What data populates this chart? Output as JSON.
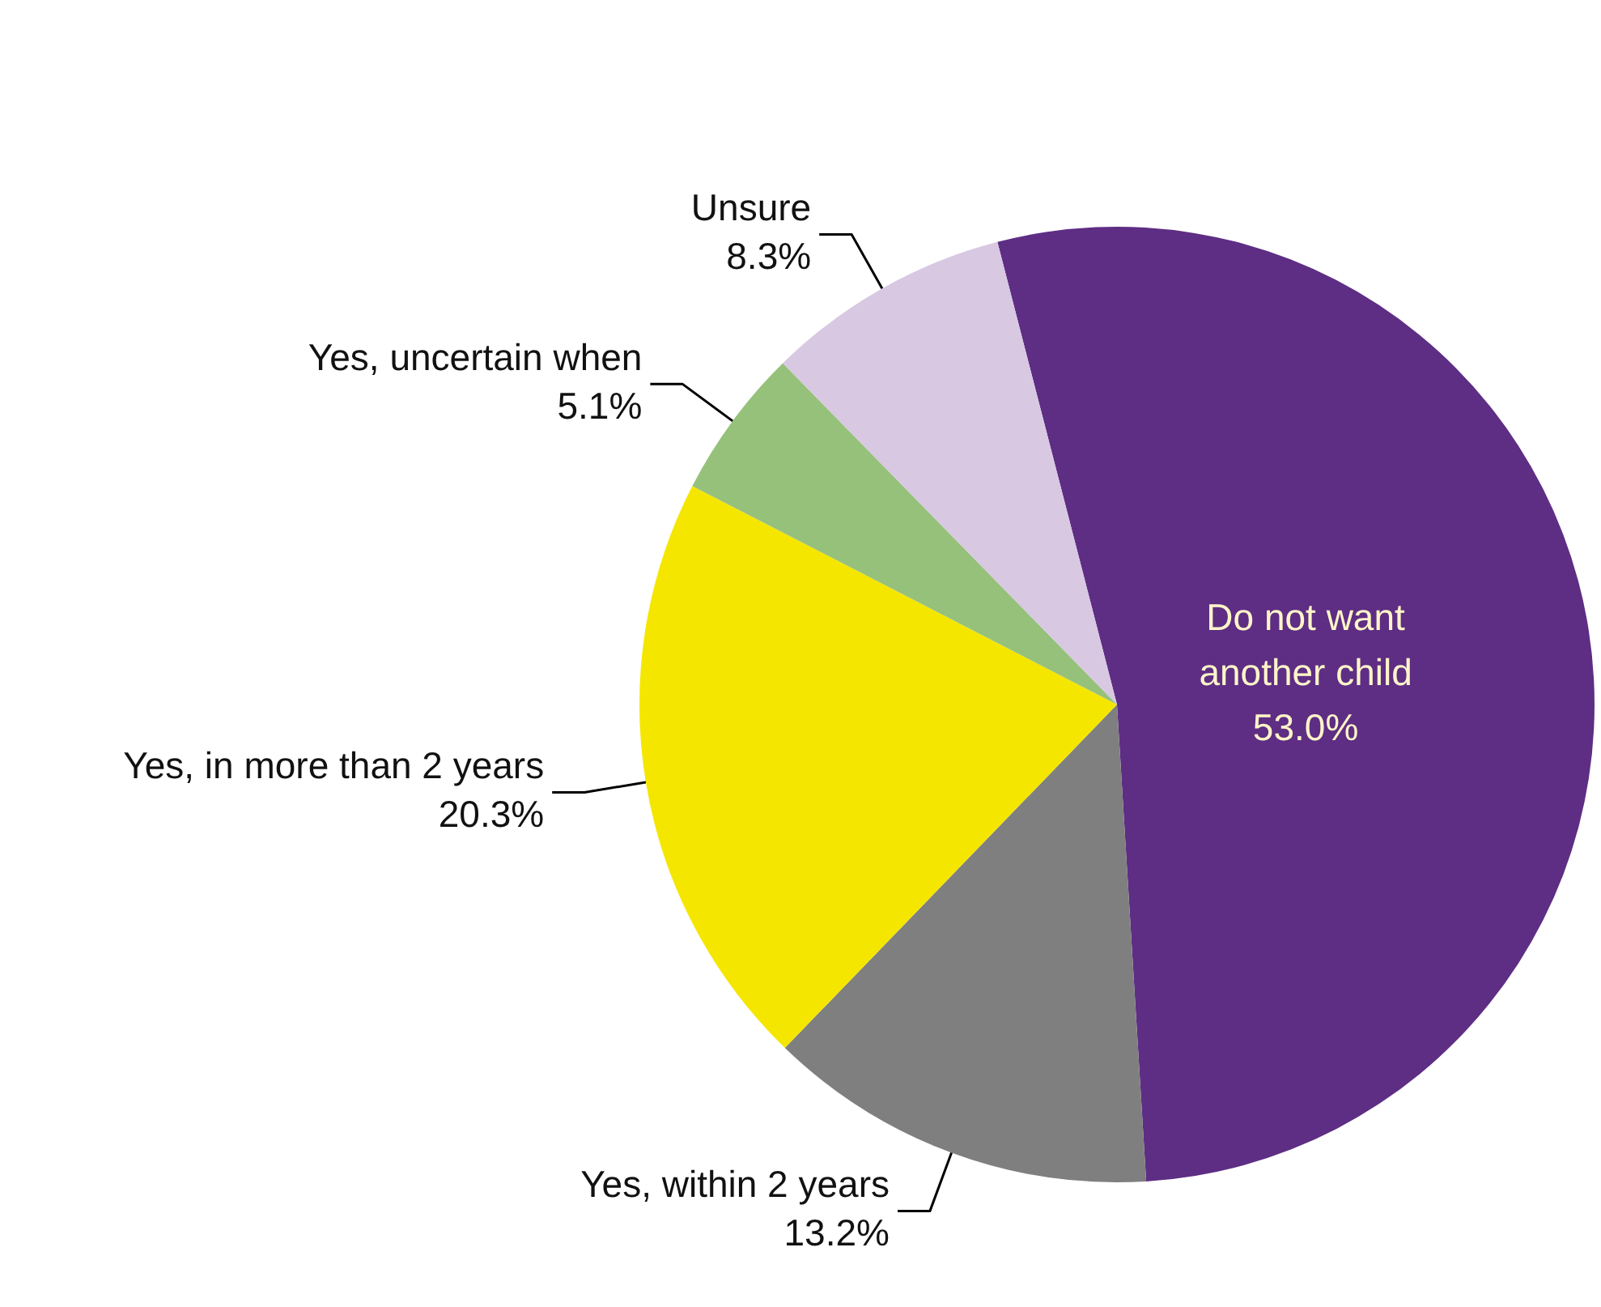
{
  "chart_data": {
    "type": "pie",
    "categories": [
      "Do not want another child",
      "Yes, within 2 years",
      "Yes, in more than 2 years",
      "Yes, uncertain when",
      "Unsure"
    ],
    "values": [
      53.0,
      13.2,
      20.3,
      5.1,
      8.3
    ],
    "colors": [
      "#5e2d84",
      "#7f7f7f",
      "#f5e600",
      "#96c17a",
      "#d8c8e2"
    ],
    "value_labels": [
      "53.0%",
      "13.2%",
      "20.3%",
      "5.1%",
      "8.3%"
    ]
  }
}
